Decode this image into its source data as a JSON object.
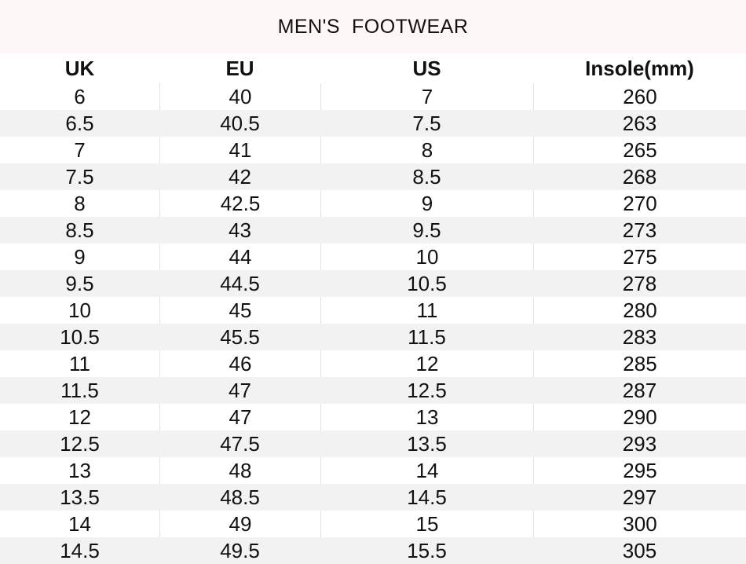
{
  "title": "MEN'S  FOOTWEAR",
  "table": {
    "header": [
      "UK",
      "EU",
      "US",
      "Insole(mm)"
    ],
    "rows": [
      [
        "6",
        "40",
        "7",
        "260"
      ],
      [
        "6.5",
        "40.5",
        "7.5",
        "263"
      ],
      [
        "7",
        "41",
        "8",
        "265"
      ],
      [
        "7.5",
        "42",
        "8.5",
        "268"
      ],
      [
        "8",
        "42.5",
        "9",
        "270"
      ],
      [
        "8.5",
        "43",
        "9.5",
        "273"
      ],
      [
        "9",
        "44",
        "10",
        "275"
      ],
      [
        "9.5",
        "44.5",
        "10.5",
        "278"
      ],
      [
        "10",
        "45",
        "11",
        "280"
      ],
      [
        "10.5",
        "45.5",
        "11.5",
        "283"
      ],
      [
        "11",
        "46",
        "12",
        "285"
      ],
      [
        "11.5",
        "47",
        "12.5",
        "287"
      ],
      [
        "12",
        "47",
        "13",
        "290"
      ],
      [
        "12.5",
        "47.5",
        "13.5",
        "293"
      ],
      [
        "13",
        "48",
        "14",
        "295"
      ],
      [
        "13.5",
        "48.5",
        "14.5",
        "297"
      ],
      [
        "14",
        "49",
        "15",
        "300"
      ],
      [
        "14.5",
        "49.5",
        "15.5",
        "305"
      ]
    ]
  }
}
